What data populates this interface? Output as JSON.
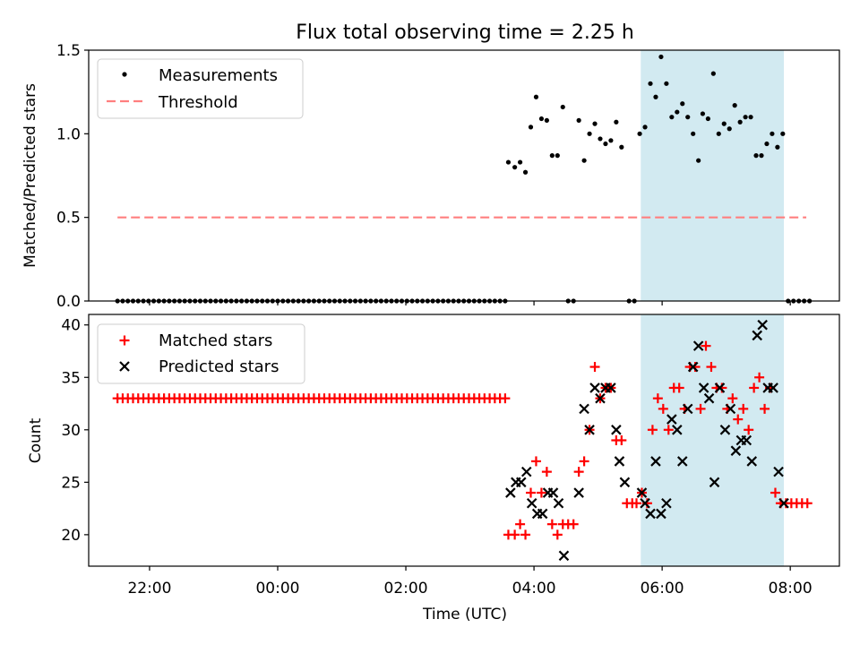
{
  "title": "Flux total observing time = 2.25 h",
  "colors": {
    "measurement": "#000000",
    "threshold": "#ff7f7f",
    "matched": "#ff0000",
    "predicted": "#000000",
    "shade": "#add8e6"
  },
  "chart_data": [
    {
      "type": "scatter",
      "panel": "top",
      "ylabel": "Matched/Predicted stars",
      "ylim": [
        0,
        1.5
      ],
      "yticks": [
        0,
        0.5,
        1.0,
        1.5
      ],
      "ytick_labels": [
        "0.0",
        "0.5",
        "1.0",
        "1.5"
      ],
      "legend_position": "top-left",
      "legend": [
        {
          "label": "Measurements",
          "marker": "dot"
        },
        {
          "label": "Threshold",
          "marker": "dashed-line"
        }
      ],
      "threshold": {
        "y": 0.5,
        "x_start_min": -150,
        "x_end_min": 495
      },
      "shaded_region_min": [
        340,
        474
      ],
      "zero_series": {
        "start_min": -150,
        "end_min": 213,
        "step_min": 4.84
      },
      "measurements": [
        [
          216,
          0.83
        ],
        [
          222,
          0.8
        ],
        [
          227,
          0.83
        ],
        [
          232,
          0.77
        ],
        [
          237,
          1.04
        ],
        [
          242,
          1.22
        ],
        [
          247,
          1.09
        ],
        [
          252,
          1.08
        ],
        [
          257,
          0.87
        ],
        [
          262,
          0.87
        ],
        [
          267,
          1.16
        ],
        [
          272,
          0
        ],
        [
          277,
          0
        ],
        [
          282,
          1.08
        ],
        [
          287,
          0.84
        ],
        [
          292,
          1.0
        ],
        [
          297,
          1.06
        ],
        [
          302,
          0.97
        ],
        [
          307,
          0.94
        ],
        [
          312,
          0.96
        ],
        [
          317,
          1.07
        ],
        [
          322,
          0.92
        ],
        [
          329,
          0
        ],
        [
          334,
          0
        ],
        [
          339,
          1.0
        ],
        [
          344,
          1.04
        ],
        [
          349,
          1.3
        ],
        [
          354,
          1.22
        ],
        [
          359,
          1.46
        ],
        [
          364,
          1.3
        ],
        [
          369,
          1.1
        ],
        [
          374,
          1.13
        ],
        [
          379,
          1.18
        ],
        [
          384,
          1.1
        ],
        [
          389,
          1.0
        ],
        [
          394,
          0.84
        ],
        [
          398,
          1.12
        ],
        [
          403,
          1.09
        ],
        [
          408,
          1.36
        ],
        [
          413,
          1.0
        ],
        [
          418,
          1.06
        ],
        [
          423,
          1.03
        ],
        [
          428,
          1.17
        ],
        [
          433,
          1.07
        ],
        [
          438,
          1.1
        ],
        [
          443,
          1.1
        ],
        [
          448,
          0.87
        ],
        [
          453,
          0.87
        ],
        [
          458,
          0.94
        ],
        [
          463,
          1.0
        ],
        [
          468,
          0.92
        ],
        [
          473,
          1.0
        ],
        [
          478,
          0
        ],
        [
          483,
          0
        ],
        [
          488,
          0
        ],
        [
          493,
          0
        ],
        [
          498,
          0
        ]
      ]
    },
    {
      "type": "scatter",
      "panel": "bottom",
      "ylabel": "Count",
      "xlabel": "Time (UTC)",
      "ylim": [
        17,
        41
      ],
      "yticks": [
        20,
        25,
        30,
        35,
        40
      ],
      "ytick_labels": [
        "20",
        "25",
        "30",
        "35",
        "40"
      ],
      "xlim_min": [
        -177,
        526
      ],
      "xticks_min": [
        -120,
        0,
        120,
        240,
        360,
        480
      ],
      "xtick_labels": [
        "22:00",
        "00:00",
        "02:00",
        "04:00",
        "06:00",
        "08:00"
      ],
      "legend_position": "top-left",
      "legend": [
        {
          "label": "Matched stars",
          "marker": "plus"
        },
        {
          "label": "Predicted stars",
          "marker": "x"
        }
      ],
      "shaded_region_min": [
        340,
        474
      ],
      "matched_constant": {
        "value": 33,
        "start_min": -150,
        "end_min": 213,
        "step_min": 4.84
      },
      "matched": [
        [
          216,
          20
        ],
        [
          222,
          20
        ],
        [
          227,
          21
        ],
        [
          232,
          20
        ],
        [
          237,
          24
        ],
        [
          242,
          27
        ],
        [
          247,
          24
        ],
        [
          252,
          26
        ],
        [
          257,
          21
        ],
        [
          262,
          20
        ],
        [
          267,
          21
        ],
        [
          272,
          21
        ],
        [
          277,
          21
        ],
        [
          282,
          26
        ],
        [
          287,
          27
        ],
        [
          292,
          30
        ],
        [
          297,
          36
        ],
        [
          302,
          33
        ],
        [
          307,
          34
        ],
        [
          312,
          34
        ],
        [
          317,
          29
        ],
        [
          322,
          29
        ],
        [
          327,
          23
        ],
        [
          332,
          23
        ],
        [
          336,
          23
        ],
        [
          341,
          24
        ],
        [
          346,
          23
        ],
        [
          351,
          30
        ],
        [
          356,
          33
        ],
        [
          361,
          32
        ],
        [
          366,
          30
        ],
        [
          371,
          34
        ],
        [
          376,
          34
        ],
        [
          381,
          32
        ],
        [
          386,
          36
        ],
        [
          391,
          36
        ],
        [
          396,
          32
        ],
        [
          401,
          38
        ],
        [
          406,
          36
        ],
        [
          411,
          34
        ],
        [
          416,
          34
        ],
        [
          421,
          32
        ],
        [
          426,
          33
        ],
        [
          431,
          31
        ],
        [
          436,
          32
        ],
        [
          441,
          30
        ],
        [
          446,
          34
        ],
        [
          451,
          35
        ],
        [
          456,
          32
        ],
        [
          461,
          34
        ],
        [
          466,
          24
        ],
        [
          471,
          23
        ],
        [
          476,
          23
        ],
        [
          481,
          23
        ],
        [
          486,
          23
        ],
        [
          491,
          23
        ],
        [
          496,
          23
        ]
      ],
      "predicted": [
        [
          218,
          24
        ],
        [
          223,
          25
        ],
        [
          228,
          25
        ],
        [
          233,
          26
        ],
        [
          238,
          23
        ],
        [
          243,
          22
        ],
        [
          248,
          22
        ],
        [
          253,
          24
        ],
        [
          258,
          24
        ],
        [
          263,
          23
        ],
        [
          268,
          18
        ],
        [
          282,
          24
        ],
        [
          287,
          32
        ],
        [
          292,
          30
        ],
        [
          297,
          34
        ],
        [
          302,
          33
        ],
        [
          307,
          34
        ],
        [
          312,
          34
        ],
        [
          317,
          30
        ],
        [
          320,
          27
        ],
        [
          325,
          25
        ],
        [
          341,
          24
        ],
        [
          344,
          23
        ],
        [
          349,
          22
        ],
        [
          354,
          27
        ],
        [
          359,
          22
        ],
        [
          364,
          23
        ],
        [
          369,
          31
        ],
        [
          374,
          30
        ],
        [
          379,
          27
        ],
        [
          384,
          32
        ],
        [
          389,
          36
        ],
        [
          394,
          38
        ],
        [
          399,
          34
        ],
        [
          404,
          33
        ],
        [
          409,
          25
        ],
        [
          414,
          34
        ],
        [
          419,
          30
        ],
        [
          424,
          32
        ],
        [
          429,
          28
        ],
        [
          434,
          29
        ],
        [
          439,
          29
        ],
        [
          444,
          27
        ],
        [
          449,
          39
        ],
        [
          454,
          40
        ],
        [
          459,
          34
        ],
        [
          464,
          34
        ],
        [
          469,
          26
        ],
        [
          474,
          23
        ]
      ]
    }
  ]
}
